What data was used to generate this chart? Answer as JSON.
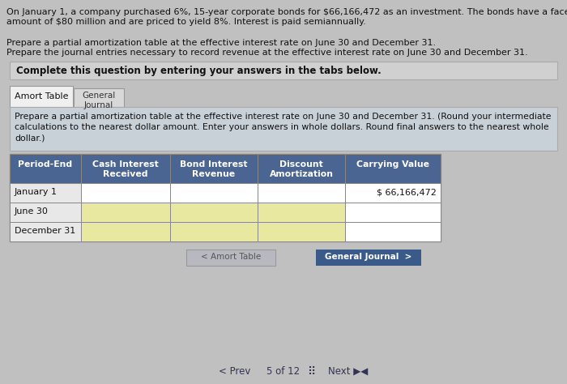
{
  "bg_color": "#c0c0c0",
  "page_bg": "#c0c0c0",
  "header_line1": "On January 1, a company purchased 6%, 15-year corporate bonds for $66,166,472 as an investment. The bonds have a face",
  "header_line2": "amount of $80 million and are priced to yield 8%. Interest is paid semiannually.",
  "sub_line1": "Prepare a partial amortization table at the effective interest rate on June 30 and December 31.",
  "sub_line2": "Prepare the journal entries necessary to record revenue at the effective interest rate on June 30 and December 31.",
  "complete_text": "Complete this question by entering your answers in the tabs below.",
  "tab1_label": "Amort Table",
  "tab2_label": "General\nJournal",
  "instruction_line1": "Prepare a partial amortization table at the effective interest rate on June 30 and December 31. (Round your intermediate",
  "instruction_line2": "calculations to the nearest dollar amount. Enter your answers in whole dollars. Round final answers to the nearest whole",
  "instruction_line3": "dollar.)",
  "col_headers": [
    "Period-End",
    "Cash Interest\nReceived",
    "Bond Interest\nRevenue",
    "Discount\nAmortization",
    "Carrying Value"
  ],
  "col_header_bg": "#4a6591",
  "col_header_fg": "#ffffff",
  "row_labels": [
    "January 1",
    "June 30",
    "December 31"
  ],
  "jan1_carrying": "$ 66,166,472",
  "input_bg": "#e8e8a0",
  "white_cell_bg": "#ffffff",
  "label_cell_bg": "#e8e8e8",
  "table_border": "#888888",
  "complete_box_bg": "#d0d0d0",
  "instruction_box_bg": "#c8d0d8",
  "tab_active_bg": "#f0f0f0",
  "tab_inactive_bg": "#d8d8d8",
  "amort_btn_bg": "#b8b8c0",
  "amort_btn_fg": "#555555",
  "amort_btn_text": "< Amort Table",
  "general_btn_bg": "#3a5a8a",
  "general_btn_fg": "#ffffff",
  "general_btn_text": "General Journal  >",
  "nav_prev": "< Prev",
  "nav_page": "5 of 12",
  "nav_next": "Next ▶◄",
  "nav_color": "#333355"
}
